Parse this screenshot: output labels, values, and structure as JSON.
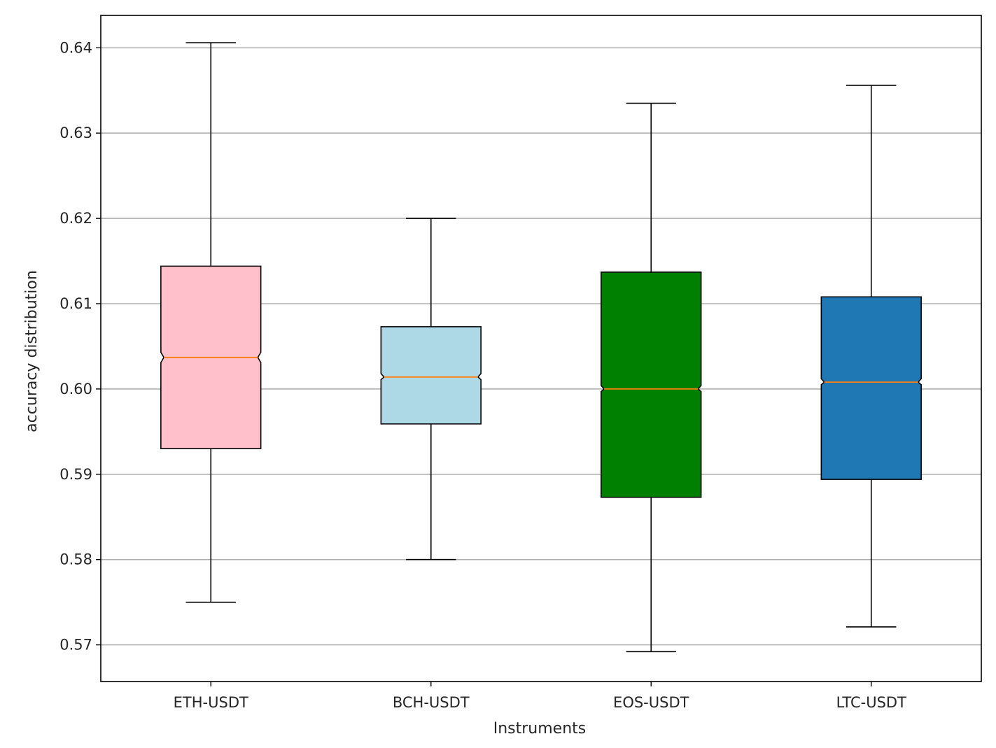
{
  "chart_data": {
    "type": "boxplot",
    "notched": true,
    "xlabel": "Instruments",
    "ylabel": "accuracy distribution",
    "ylim": [
      0.5657,
      0.6438
    ],
    "yticks": [
      0.57,
      0.58,
      0.59,
      0.6,
      0.61,
      0.62,
      0.63,
      0.64
    ],
    "ytick_labels": [
      "0.57",
      "0.58",
      "0.59",
      "0.60",
      "0.61",
      "0.62",
      "0.63",
      "0.64"
    ],
    "grid": "horizontal",
    "median_color": "#ff7f0e",
    "categories": [
      "ETH-USDT",
      "BCH-USDT",
      "EOS-USDT",
      "LTC-USDT"
    ],
    "boxes": [
      {
        "label": "ETH-USDT",
        "color": "#ffc0cb",
        "whisker_low": 0.575,
        "q1": 0.593,
        "median": 0.6037,
        "q3": 0.6144,
        "whisker_high": 0.6406,
        "notch_low": 0.6031,
        "notch_high": 0.6043
      },
      {
        "label": "BCH-USDT",
        "color": "#add8e6",
        "whisker_low": 0.58,
        "q1": 0.5959,
        "median": 0.6014,
        "q3": 0.6073,
        "whisker_high": 0.62,
        "notch_low": 0.6011,
        "notch_high": 0.6018
      },
      {
        "label": "EOS-USDT",
        "color": "#008000",
        "whisker_low": 0.5692,
        "q1": 0.5873,
        "median": 0.6,
        "q3": 0.6137,
        "whisker_high": 0.6335,
        "notch_low": 0.5997,
        "notch_high": 0.6004
      },
      {
        "label": "LTC-USDT",
        "color": "#1f77b4",
        "whisker_low": 0.5721,
        "q1": 0.5894,
        "median": 0.6008,
        "q3": 0.6108,
        "whisker_high": 0.6356,
        "notch_low": 0.6005,
        "notch_high": 0.6012
      }
    ]
  }
}
